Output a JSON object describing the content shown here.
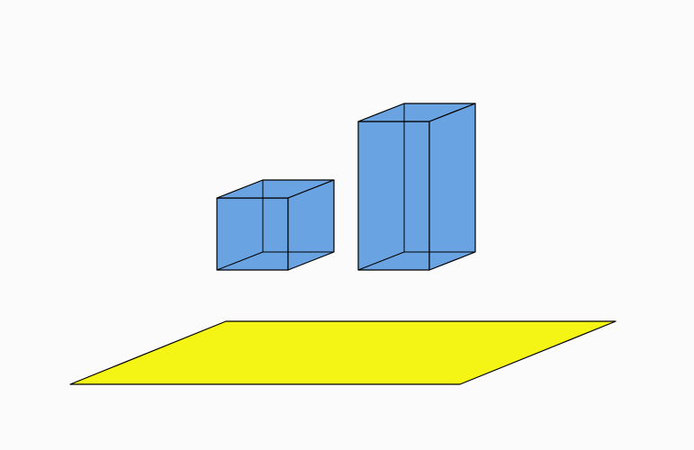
{
  "scene": {
    "background_color": "#fbfbfb",
    "box_fill_color": "#6aa3e2",
    "plane_fill_color": "#f4f415",
    "stroke_color": "#000000"
  },
  "objects": [
    {
      "kind": "cube",
      "icon": "cube-icon"
    },
    {
      "kind": "rectangular-prism",
      "icon": "box-icon"
    },
    {
      "kind": "plane",
      "icon": "parallelogram-icon"
    }
  ]
}
